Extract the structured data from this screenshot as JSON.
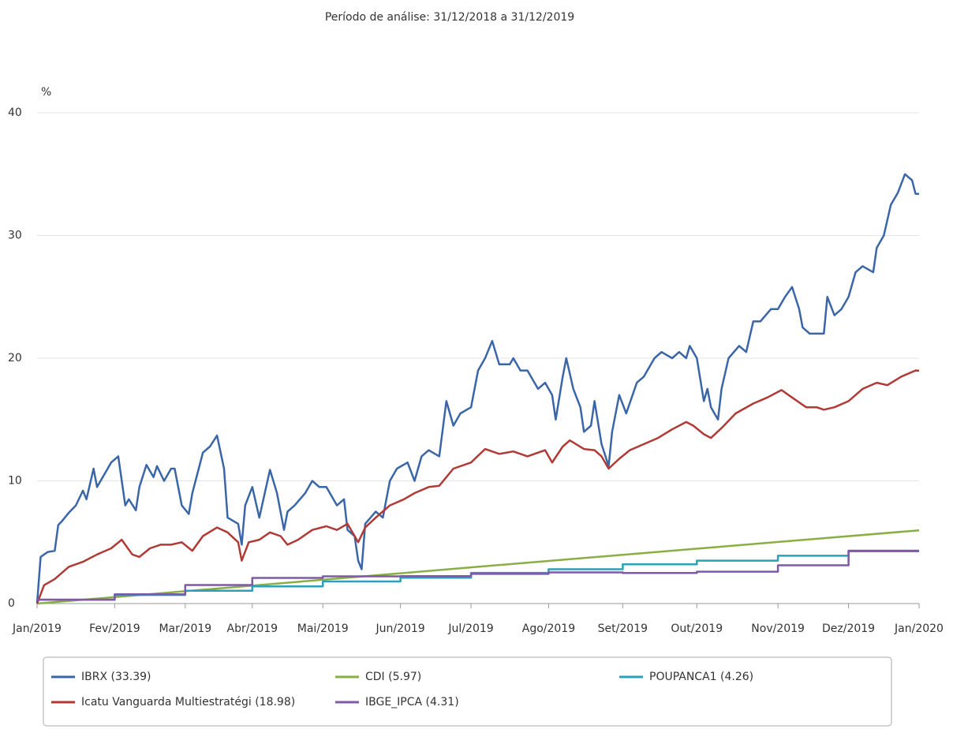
{
  "chart_data": {
    "type": "line",
    "title": "Período de análise: 31/12/2018 a 31/12/2019",
    "ylabel": "%",
    "xlim": [
      0,
      250
    ],
    "ylim": [
      0,
      40
    ],
    "yticks": [
      0,
      10,
      20,
      30,
      40
    ],
    "xticks": [
      {
        "value": 0,
        "label": "Jan/2019"
      },
      {
        "value": 22,
        "label": "Fev/2019"
      },
      {
        "value": 42,
        "label": "Mar/2019"
      },
      {
        "value": 61,
        "label": "Abr/2019"
      },
      {
        "value": 81,
        "label": "Mai/2019"
      },
      {
        "value": 103,
        "label": "Jun/2019"
      },
      {
        "value": 123,
        "label": "Jul/2019"
      },
      {
        "value": 145,
        "label": "Ago/2019"
      },
      {
        "value": 166,
        "label": "Set/2019"
      },
      {
        "value": 187,
        "label": "Out/2019"
      },
      {
        "value": 210,
        "label": "Nov/2019"
      },
      {
        "value": 230,
        "label": "Dez/2019"
      },
      {
        "value": 250,
        "label": "Jan/2020"
      }
    ],
    "grid": true,
    "legend": "bottom",
    "series": [
      {
        "name": "IBRX (33.39)",
        "color": "#3a66a8",
        "x": [
          0,
          1,
          3,
          5,
          6,
          7,
          9,
          11,
          13,
          14,
          16,
          17,
          19,
          21,
          23,
          25,
          26,
          28,
          29,
          31,
          33,
          34,
          36,
          38,
          39,
          41,
          43,
          44,
          47,
          49,
          51,
          53,
          54,
          57,
          58,
          59,
          61,
          63,
          66,
          68,
          70,
          71,
          73,
          76,
          78,
          80,
          82,
          85,
          87,
          88,
          90,
          91,
          92,
          93,
          96,
          98,
          100,
          102,
          105,
          107,
          109,
          111,
          114,
          116,
          118,
          120,
          123,
          125,
          127,
          129,
          131,
          134,
          135,
          137,
          139,
          142,
          144,
          146,
          147,
          149,
          150,
          152,
          154,
          155,
          157,
          158,
          160,
          162,
          163,
          165,
          167,
          170,
          172,
          174,
          175,
          177,
          180,
          182,
          184,
          185,
          187,
          189,
          190,
          191,
          193,
          194,
          196,
          199,
          201,
          203,
          205,
          208,
          210,
          212,
          214,
          216,
          217,
          219,
          221,
          223,
          224,
          226,
          228,
          230,
          232,
          234,
          237,
          238,
          240,
          242,
          244,
          246,
          248,
          249,
          250
        ],
        "values": [
          0,
          3.8,
          4.2,
          4.3,
          6.4,
          6.7,
          7.4,
          8.0,
          9.2,
          8.5,
          11.0,
          9.5,
          10.5,
          11.5,
          12.0,
          8.0,
          8.5,
          7.6,
          9.5,
          11.3,
          10.3,
          11.2,
          10.0,
          11.0,
          11.0,
          8.0,
          7.3,
          9.0,
          12.3,
          12.8,
          13.7,
          11.0,
          7.0,
          6.5,
          4.8,
          8.0,
          9.5,
          7.0,
          10.9,
          9.0,
          6.0,
          7.5,
          8.0,
          9.0,
          10.0,
          9.5,
          9.5,
          8.0,
          8.5,
          6.0,
          5.5,
          3.5,
          2.8,
          6.5,
          7.5,
          7.0,
          10.0,
          11.0,
          11.5,
          10.0,
          12.0,
          12.5,
          12.0,
          16.5,
          14.5,
          15.5,
          16.0,
          19.0,
          20.0,
          21.4,
          19.5,
          19.5,
          20.0,
          19.0,
          19.0,
          17.5,
          18.0,
          17.0,
          15.0,
          18.5,
          20.0,
          17.5,
          16.0,
          14.0,
          14.5,
          16.5,
          13.0,
          11.2,
          14.0,
          17.0,
          15.5,
          18.0,
          18.5,
          19.5,
          20.0,
          20.5,
          20.0,
          20.5,
          20.0,
          21.0,
          20.0,
          16.5,
          17.5,
          16.0,
          15.0,
          17.5,
          20.0,
          21.0,
          20.5,
          23.0,
          23.0,
          24.0,
          24.0,
          25.0,
          25.8,
          24.0,
          22.5,
          22.0,
          22.0,
          22.0,
          25.0,
          23.5,
          24.0,
          25.0,
          27.0,
          27.5,
          27.0,
          29.0,
          30.0,
          32.5,
          33.5,
          35.0,
          34.5,
          33.4,
          33.39
        ]
      },
      {
        "name": "CDI (5.97)",
        "color": "#8aae46",
        "x": [
          0,
          125,
          250
        ],
        "values": [
          0,
          3.0,
          5.97
        ]
      },
      {
        "name": "POUPANCA1 (4.26)",
        "color": "#2ba0b8",
        "x": [
          0,
          22,
          22,
          42,
          42,
          61,
          61,
          81,
          81,
          103,
          103,
          123,
          123,
          145,
          145,
          166,
          166,
          187,
          187,
          210,
          210,
          230,
          230,
          250
        ],
        "values": [
          0.3,
          0.3,
          0.7,
          0.7,
          1.05,
          1.05,
          1.4,
          1.4,
          1.8,
          1.8,
          2.1,
          2.1,
          2.5,
          2.5,
          2.8,
          2.8,
          3.2,
          3.2,
          3.5,
          3.5,
          3.9,
          3.9,
          4.26,
          4.26
        ]
      },
      {
        "name": "Icatu Vanguarda Multiestratégi (18.98)",
        "color": "#b03a35",
        "x": [
          0,
          2,
          5,
          9,
          13,
          17,
          21,
          24,
          27,
          29,
          32,
          35,
          38,
          41,
          44,
          47,
          51,
          54,
          57,
          58,
          60,
          63,
          66,
          69,
          71,
          74,
          78,
          82,
          85,
          88,
          90,
          91,
          93,
          96,
          100,
          104,
          107,
          111,
          114,
          118,
          123,
          127,
          131,
          135,
          139,
          144,
          146,
          149,
          151,
          155,
          158,
          160,
          162,
          165,
          168,
          172,
          176,
          180,
          184,
          186,
          189,
          191,
          194,
          198,
          203,
          207,
          211,
          214,
          218,
          221,
          223,
          226,
          230,
          234,
          238,
          241,
          245,
          249,
          250
        ],
        "values": [
          0,
          1.5,
          2.0,
          3.0,
          3.4,
          4.0,
          4.5,
          5.2,
          4.0,
          3.8,
          4.5,
          4.8,
          4.8,
          5.0,
          4.3,
          5.5,
          6.2,
          5.8,
          5.0,
          3.5,
          5.0,
          5.2,
          5.8,
          5.5,
          4.8,
          5.2,
          6.0,
          6.3,
          6.0,
          6.5,
          5.5,
          5.0,
          6.2,
          7.0,
          8.0,
          8.5,
          9.0,
          9.5,
          9.6,
          11.0,
          11.5,
          12.6,
          12.2,
          12.4,
          12.0,
          12.5,
          11.5,
          12.8,
          13.3,
          12.6,
          12.5,
          12.0,
          11.0,
          11.8,
          12.5,
          13.0,
          13.5,
          14.2,
          14.8,
          14.5,
          13.8,
          13.5,
          14.3,
          15.5,
          16.3,
          16.8,
          17.4,
          16.8,
          16.0,
          16.0,
          15.8,
          16.0,
          16.5,
          17.5,
          18.0,
          17.8,
          18.5,
          19.0,
          18.98
        ]
      },
      {
        "name": "IBGE_IPCA (4.31)",
        "color": "#7e5aa6",
        "x": [
          0,
          22,
          22,
          42,
          42,
          61,
          61,
          81,
          81,
          103,
          103,
          123,
          123,
          145,
          145,
          166,
          166,
          187,
          187,
          210,
          210,
          230,
          230,
          250
        ],
        "values": [
          0.32,
          0.32,
          0.75,
          0.75,
          1.51,
          1.51,
          2.09,
          2.09,
          2.22,
          2.22,
          2.23,
          2.23,
          2.42,
          2.42,
          2.54,
          2.54,
          2.49,
          2.49,
          2.6,
          2.6,
          3.12,
          3.12,
          4.31,
          4.31
        ]
      }
    ]
  }
}
